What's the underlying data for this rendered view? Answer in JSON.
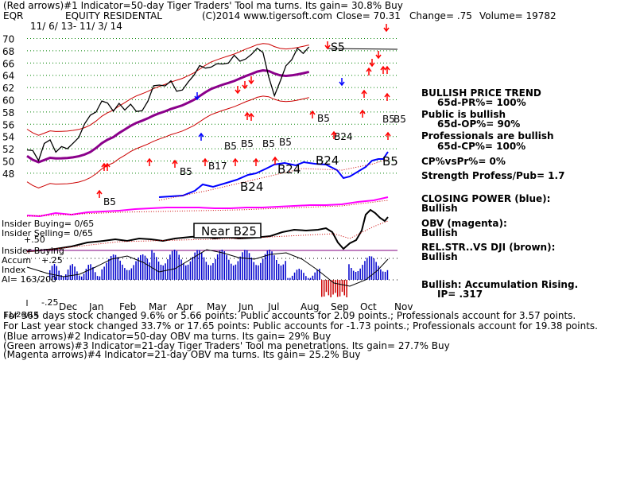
{
  "header": {
    "line1": "(Red arrows)#1 Indicator=50-day Tiger Traders' Tool ma turns. Its gain= 30.8% Buy",
    "ticker": "EQR",
    "name": "EQUITY RESIDENTAL",
    "copyright": "(C)2014 www.tigersoft.com",
    "close": "Close=  70.31",
    "change": "Change= .75",
    "volume": "Volume= 19782",
    "date_range": "11/ 6/ 13- 11/ 3/ 14"
  },
  "right_panel": [
    {
      "text": "BULLISH PRICE TREND",
      "indent": 0
    },
    {
      "text": "65d-PR%= 100%",
      "indent": 20
    },
    {
      "text": "Public is bullish",
      "indent": 0
    },
    {
      "text": "65d-OP%= 90%",
      "indent": 20
    },
    {
      "text": "Professionals are bullish",
      "indent": 0
    },
    {
      "text": "65d-CP%= 100%",
      "indent": 20
    },
    {
      "text": "CP%vsPr%=  0%",
      "indent": 0
    },
    {
      "text": "Strength Profess/Pub= 1.7",
      "indent": 0
    },
    {
      "text": "CLOSING POWER (blue):",
      "indent": 0
    },
    {
      "text": "Bullish",
      "indent": 0
    },
    {
      "text": "OBV (magenta):",
      "indent": 0
    },
    {
      "text": "Bullish",
      "indent": 0
    },
    {
      "text": "REL.STR..VS DJI (brown):",
      "indent": 0
    },
    {
      "text": "Bullish",
      "indent": 0
    },
    {
      "text": "Bullish: Accumulation Rising.",
      "indent": 0
    },
    {
      "text": "IP=  .317",
      "indent": 20
    }
  ],
  "left_labels": {
    "insider_buying": "Insider Buying= 0/65",
    "insider_selling": "Insider Selling= 0/65",
    "insider_buying2": "Insider Buying",
    "accum": "Accum",
    "index": "Index",
    "ai": "AI= 163/200",
    "plus50": "+.50",
    "plus25": "+.25",
    "minus25": "-.25"
  },
  "annotations": {
    "near_b25": "Near B25"
  },
  "footer": [
    "For 365 days stock changed  9.6% or  5.66 points:  Public accounts for  2.09 points.;  Professionals account for  3.57 points.",
    "For Last year stock changed  33.7% or  17.65 points:  Public accounts for -1.73 points.;  Professionals account for  19.38 points.",
    "(Blue arrows)#2 Indicator=50-day OBV ma turns. Its gain= 29% Buy",
    "(Green arrows)#3 Indicator=21-day Tiger Traders' Tool ma penetrations. Its gain= 27.7% Buy",
    "(Magenta arrows)#4 Indicator=21-day OBV ma turns. Its gain= 25.2% Buy"
  ],
  "footer_prefix": "11/26/14",
  "chart_data": {
    "type": "line",
    "title": "EQUITY RESIDENTAL",
    "y_ticks": [
      70,
      68,
      66,
      64,
      62,
      60,
      58,
      56,
      54,
      52,
      50,
      48
    ],
    "ylim": [
      47,
      71
    ],
    "x_ticks": [
      "Dec",
      "Jan",
      "Feb",
      "Mar",
      "Apr",
      "May",
      "Jun",
      "Jul",
      "Aug",
      "Sep",
      "Oct",
      "Nov"
    ],
    "price_series": {
      "name": "EQR",
      "x": [
        0,
        4,
        8,
        12,
        16,
        20,
        24,
        28,
        32,
        36,
        40,
        44,
        48,
        52,
        56,
        60,
        64,
        68,
        72,
        76,
        80,
        84,
        88,
        92,
        96,
        100,
        104,
        108,
        112,
        116,
        120,
        124,
        128,
        132,
        136,
        140,
        144,
        148,
        152,
        156,
        160,
        164,
        168,
        172,
        176,
        180,
        184,
        188,
        192,
        196,
        200,
        204,
        208,
        212,
        216,
        220,
        224,
        228,
        232,
        236,
        240,
        244,
        248,
        252
      ],
      "values": [
        52.4,
        51.2,
        50.6,
        52.8,
        53.6,
        51.5,
        52.2,
        52.4,
        53.1,
        53.8,
        55.5,
        57.1,
        58.4,
        59.2,
        59.1,
        58.2,
        58.9,
        58.4,
        59.1,
        58.3,
        57.9,
        59.7,
        62.1,
        62.5,
        62.7,
        63.3,
        61.4,
        62.2,
        63.3,
        64.1,
        65.0,
        64.9,
        65.6,
        66.0,
        66.2,
        65.9,
        66.7,
        65.8,
        66.7,
        67.1,
        68.3,
        67.2,
        63.8,
        61.0,
        62.8,
        65.2,
        66.8,
        68.4,
        68.0,
        69.1,
        70.3,
        70.3,
        70.3,
        70.3,
        70.3,
        70.3,
        70.3,
        70.3,
        70.3,
        70.3,
        70.3,
        70.3,
        70.3,
        70.3
      ]
    },
    "indicator_labels": [
      "S5",
      "B5",
      "B5",
      "B17",
      "B5",
      "B5",
      "B5",
      "B5",
      "B5",
      "B24",
      "B24",
      "B24",
      "B24",
      "B5",
      "B5",
      "B5"
    ]
  }
}
